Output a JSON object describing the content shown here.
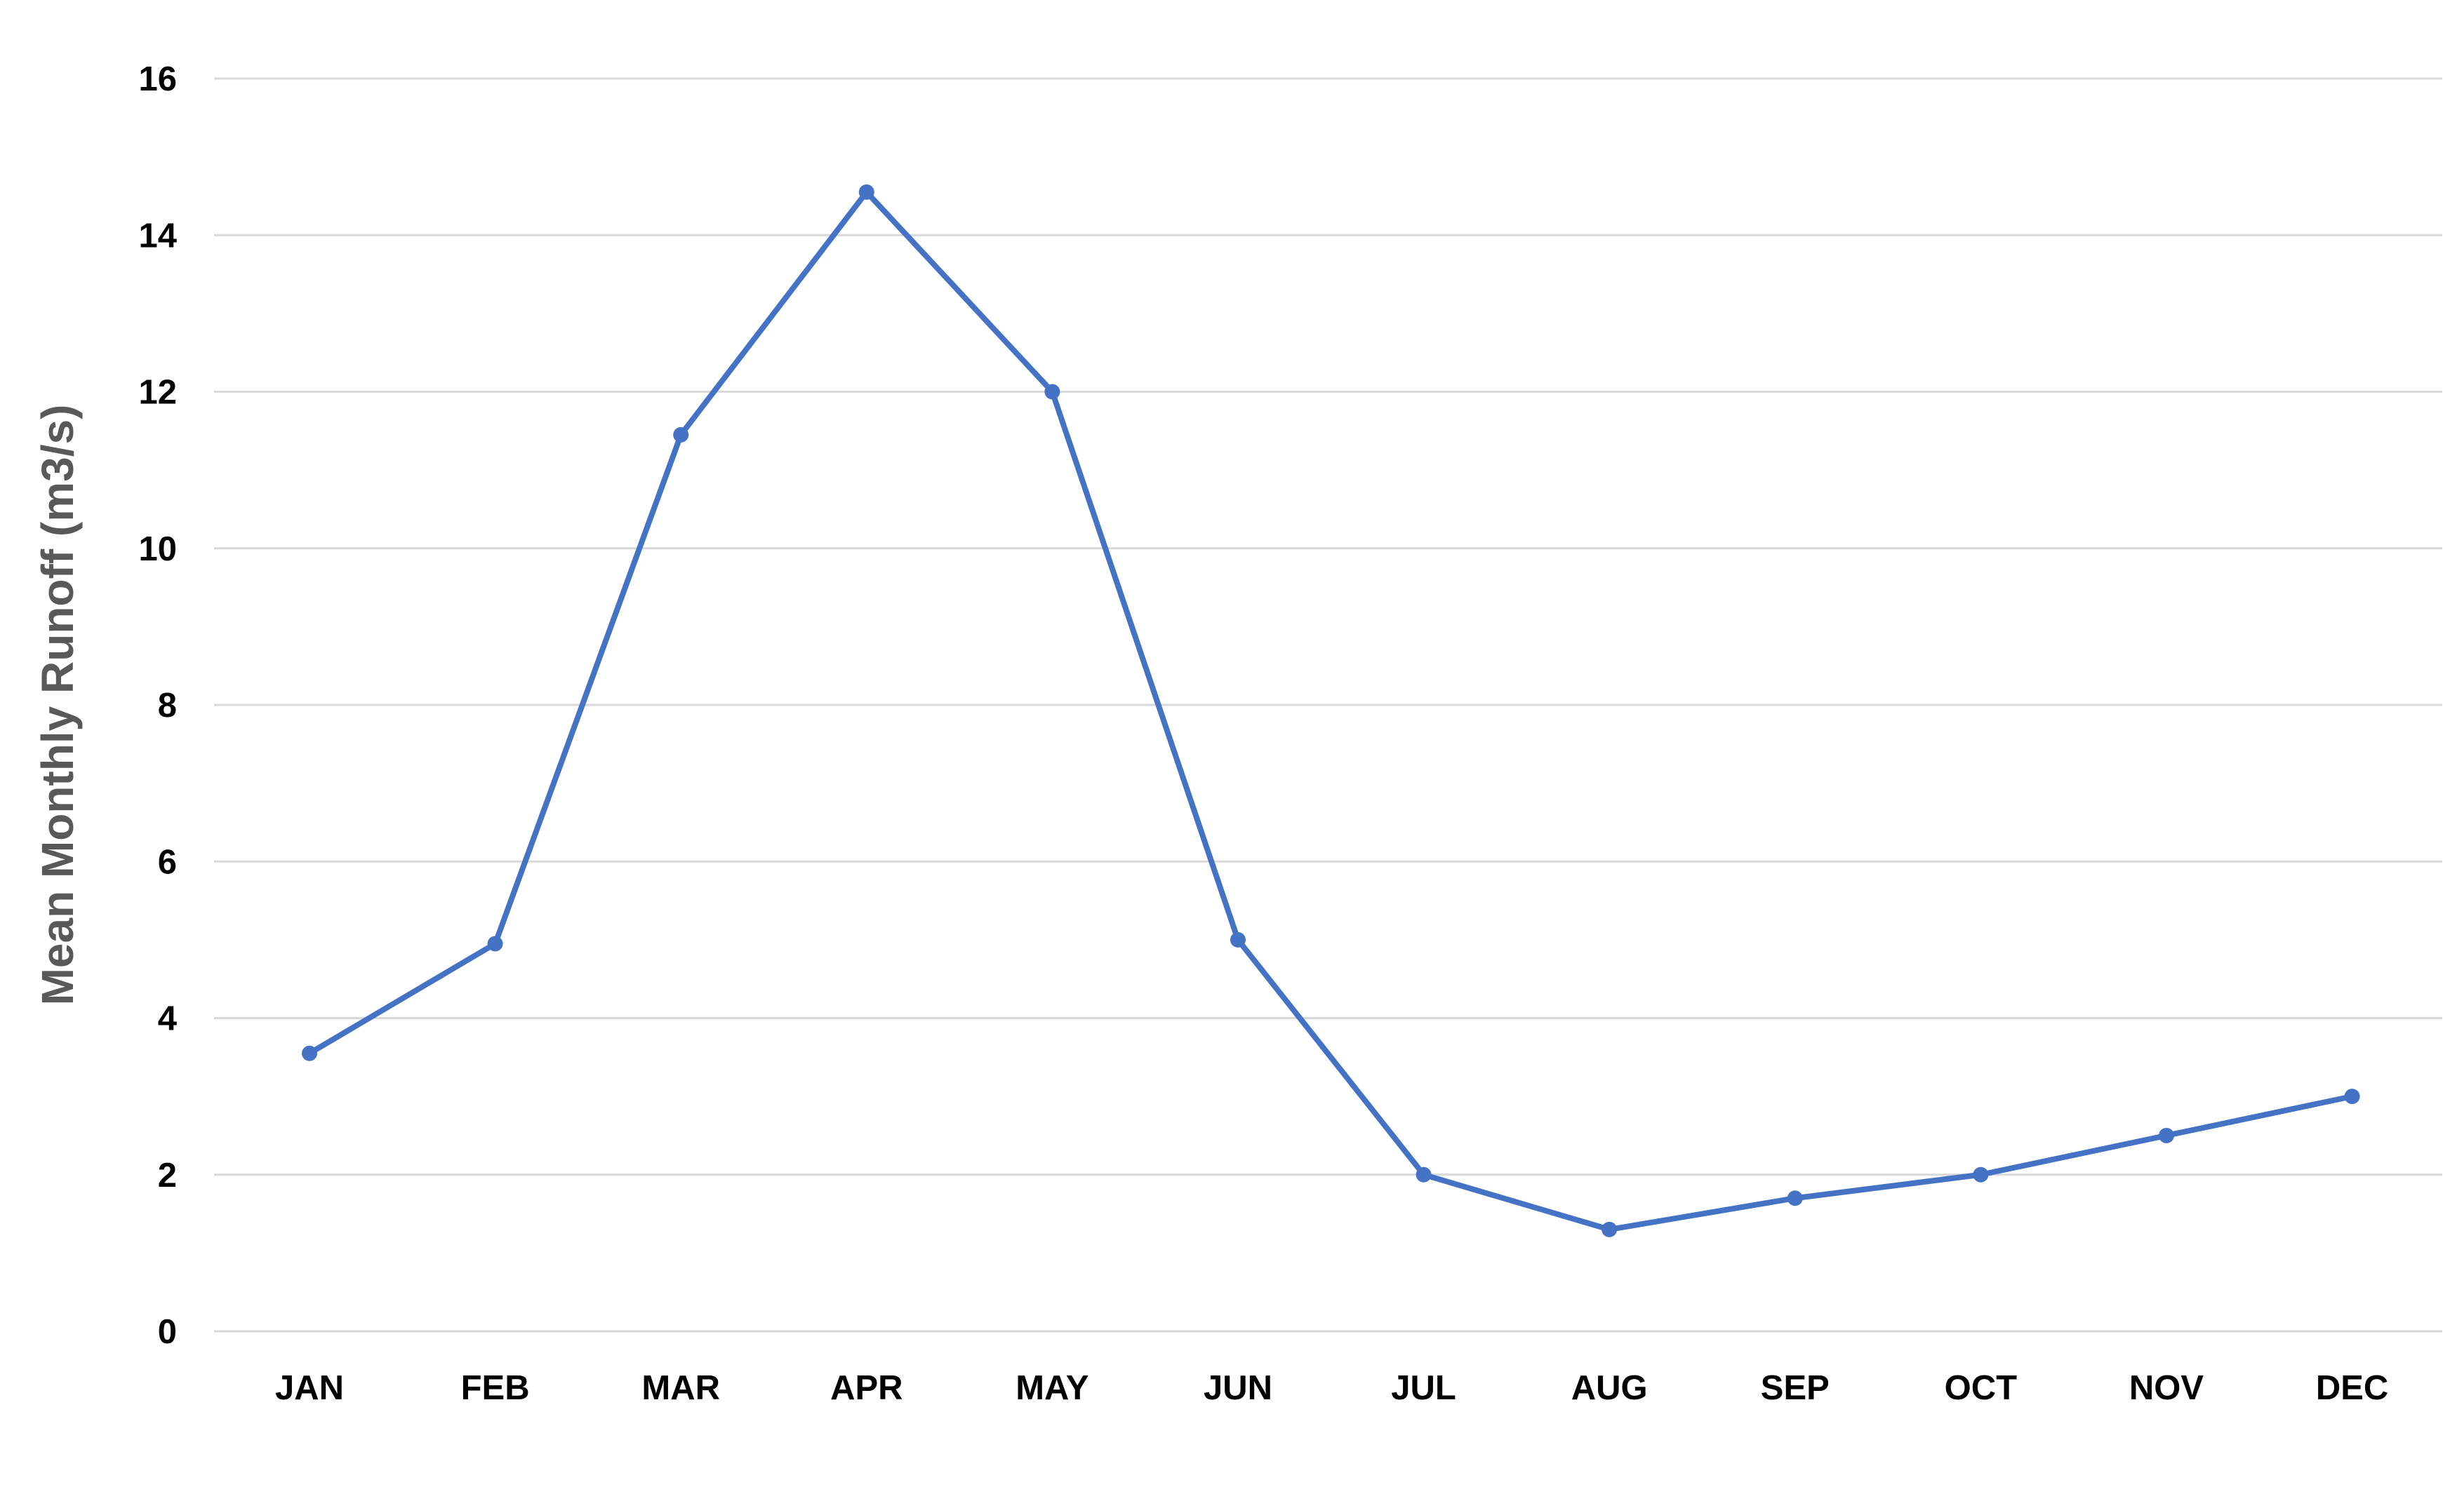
{
  "chart_data": {
    "type": "line",
    "title": "",
    "xlabel": "",
    "ylabel": "Mean Monthly Runoff  (m3/s)",
    "categories": [
      "JAN",
      "FEB",
      "MAR",
      "APR",
      "MAY",
      "JUN",
      "JUL",
      "AUG",
      "SEP",
      "OCT",
      "NOV",
      "DEC"
    ],
    "series": [
      {
        "values": [
          3.55,
          4.95,
          11.45,
          14.55,
          12.0,
          5.0,
          2.0,
          1.3,
          1.7,
          2.0,
          2.5,
          3.0
        ]
      }
    ],
    "ylim": [
      0,
      16
    ],
    "yticks": [
      "0",
      "2",
      "4",
      "6",
      "8",
      "10",
      "12",
      "14",
      "16"
    ],
    "grid": "horizontal",
    "legend": "none",
    "colors": {
      "line": "#4472C4",
      "grid": "#D9D9D9",
      "axis_title": "#595959",
      "tick_label": "#000000"
    }
  }
}
